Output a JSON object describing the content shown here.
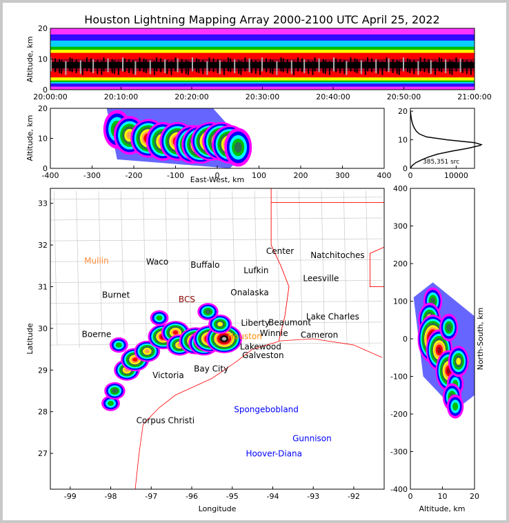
{
  "chart_data": [
    {
      "type": "heatmap",
      "name": "altitude-time",
      "title": "Houston Lightning Mapping Array 2000-2100 UTC April 25, 2022",
      "xlabel": "",
      "ylabel": "Altitude, km",
      "xticks": [
        "20:00:00",
        "20:10:00",
        "20:20:00",
        "20:30:00",
        "20:40:00",
        "20:50:00",
        "21:00:00"
      ],
      "yticks": [
        "0",
        "10",
        "20"
      ],
      "ylim": [
        0,
        20
      ],
      "density_bands_km": [
        {
          "from": 0,
          "to": 20,
          "level": 0
        },
        {
          "from": 1,
          "to": 18,
          "level": 1
        },
        {
          "from": 2,
          "to": 16,
          "level": 2
        },
        {
          "from": 2.5,
          "to": 14,
          "level": 3
        },
        {
          "from": 3,
          "to": 13,
          "level": 5
        },
        {
          "from": 4,
          "to": 12,
          "level": 7
        },
        {
          "from": 6,
          "to": 10,
          "level": 8
        },
        {
          "from": 7,
          "to": 9,
          "level": 9
        }
      ]
    },
    {
      "type": "heatmap",
      "name": "east-west-altitude",
      "xlabel": "East-West, km",
      "ylabel": "Altitude, km",
      "xlim": [
        -400,
        400
      ],
      "ylim": [
        0,
        20
      ],
      "xticks": [
        "-400",
        "-300",
        "-200",
        "-100",
        "0",
        "100",
        "200",
        "300",
        "400"
      ],
      "yticks": [
        "0",
        "10",
        "20"
      ],
      "cells": [
        [
          -240,
          13,
          4
        ],
        [
          -210,
          11,
          6
        ],
        [
          -165,
          10,
          8
        ],
        [
          -130,
          9,
          7
        ],
        [
          -95,
          9,
          8
        ],
        [
          -60,
          8,
          8
        ],
        [
          -40,
          8,
          9
        ],
        [
          -15,
          9,
          10
        ],
        [
          10,
          9,
          9
        ],
        [
          30,
          8,
          8
        ],
        [
          50,
          7,
          4
        ]
      ]
    },
    {
      "type": "line",
      "name": "altitude-histogram",
      "xlim": [
        0,
        14000
      ],
      "ylim": [
        0,
        21
      ],
      "xticks": [
        "0",
        "10000"
      ],
      "yticks": [
        "0",
        "10",
        "20"
      ],
      "annotation": "385,351 src",
      "altitude_km": [
        0,
        1,
        2,
        3,
        4,
        5,
        6,
        7,
        8,
        8.3,
        9,
        10,
        11,
        12,
        13,
        14,
        15,
        16,
        17,
        18,
        19,
        20
      ],
      "counts": [
        0,
        400,
        1200,
        2500,
        4000,
        6000,
        9000,
        12500,
        15200,
        15500,
        14000,
        8000,
        3500,
        2000,
        1300,
        900,
        600,
        400,
        250,
        150,
        80,
        30
      ]
    },
    {
      "type": "heatmap",
      "name": "plan-view-map",
      "xlabel": "Longitude",
      "ylabel": "Latitude",
      "xlim": [
        -99.49,
        -91.25
      ],
      "ylim": [
        26.14,
        33.36
      ],
      "xticks": [
        "-99",
        "-98",
        "-97",
        "-96",
        "-95",
        "-94",
        "-93",
        "-92"
      ],
      "yticks": [
        "27",
        "28",
        "29",
        "30",
        "31",
        "32",
        "33"
      ],
      "cells": [
        [
          -98.0,
          28.2,
          3
        ],
        [
          -97.9,
          28.5,
          4
        ],
        [
          -97.6,
          29.0,
          6
        ],
        [
          -97.4,
          29.25,
          7
        ],
        [
          -97.1,
          29.45,
          6
        ],
        [
          -96.7,
          29.8,
          8
        ],
        [
          -96.4,
          29.9,
          7
        ],
        [
          -96.3,
          29.6,
          6
        ],
        [
          -95.9,
          29.7,
          9
        ],
        [
          -95.7,
          29.65,
          8
        ],
        [
          -95.55,
          29.75,
          9
        ],
        [
          -95.2,
          29.75,
          10
        ],
        [
          -95.3,
          30.1,
          5
        ],
        [
          -95.6,
          30.4,
          4
        ],
        [
          -96.8,
          30.25,
          3
        ],
        [
          -97.8,
          29.6,
          3
        ]
      ],
      "cities": [
        {
          "name": "Mullin",
          "lon": -98.35,
          "lat": 31.62,
          "color": "#ff8c3c"
        },
        {
          "name": "Waco",
          "lon": -96.85,
          "lat": 31.6,
          "color": "#000000"
        },
        {
          "name": "Buffalo",
          "lon": -95.67,
          "lat": 31.52,
          "color": "#000000"
        },
        {
          "name": "Lufkin",
          "lon": -94.41,
          "lat": 31.39,
          "color": "#000000"
        },
        {
          "name": "Center",
          "lon": -93.82,
          "lat": 31.85,
          "color": "#000000"
        },
        {
          "name": "Natchitoches",
          "lon": -92.4,
          "lat": 31.75,
          "color": "#000000"
        },
        {
          "name": "Leesville",
          "lon": -92.81,
          "lat": 31.2,
          "color": "#000000"
        },
        {
          "name": "Burnet",
          "lon": -97.87,
          "lat": 30.8,
          "color": "#000000"
        },
        {
          "name": "BCS",
          "lon": -96.12,
          "lat": 30.69,
          "color": "#8b0000"
        },
        {
          "name": "Onalaska",
          "lon": -94.57,
          "lat": 30.86,
          "color": "#000000"
        },
        {
          "name": "Liberty",
          "lon": -94.43,
          "lat": 30.13,
          "color": "#000000"
        },
        {
          "name": "Beaumont",
          "lon": -93.58,
          "lat": 30.14,
          "color": "#000000"
        },
        {
          "name": "Lake Charles",
          "lon": -92.52,
          "lat": 30.28,
          "color": "#000000"
        },
        {
          "name": "Winnie",
          "lon": -93.97,
          "lat": 29.88,
          "color": "#000000"
        },
        {
          "name": "Cameron",
          "lon": -92.85,
          "lat": 29.84,
          "color": "#000000"
        },
        {
          "name": "Boerne",
          "lon": -98.35,
          "lat": 29.86,
          "color": "#000000"
        },
        {
          "name": "Houston",
          "lon": -94.69,
          "lat": 29.81,
          "color": "#ff8c00"
        },
        {
          "name": "Lakewood",
          "lon": -94.3,
          "lat": 29.56,
          "color": "#000000"
        },
        {
          "name": "Galveston",
          "lon": -94.24,
          "lat": 29.35,
          "color": "#000000"
        },
        {
          "name": "Bay City",
          "lon": -95.52,
          "lat": 29.03,
          "color": "#000000"
        },
        {
          "name": "Victoria",
          "lon": -96.58,
          "lat": 28.87,
          "color": "#000000"
        },
        {
          "name": "Corpus Christi",
          "lon": -96.65,
          "lat": 27.79,
          "color": "#000000"
        },
        {
          "name": "Spongebobland",
          "lon": -94.16,
          "lat": 28.05,
          "color": "#0000ff"
        },
        {
          "name": "Gunnison",
          "lon": -93.03,
          "lat": 27.36,
          "color": "#0000ff"
        },
        {
          "name": "Hoover-Diana",
          "lon": -93.97,
          "lat": 26.99,
          "color": "#0000ff"
        }
      ]
    },
    {
      "type": "heatmap",
      "name": "north-south-altitude",
      "xlabel": "Altitude, km",
      "ylabel": "North-South, km",
      "xlim": [
        0,
        20
      ],
      "ylim": [
        -400,
        400
      ],
      "xticks": [
        "0",
        "10",
        "20"
      ],
      "yticks": [
        "-400",
        "-300",
        "-200",
        "-100",
        "0",
        "100",
        "200",
        "300",
        "400"
      ],
      "cells": [
        [
          7,
          100,
          4
        ],
        [
          6,
          50,
          6
        ],
        [
          7,
          0,
          10
        ],
        [
          9,
          -30,
          8
        ],
        [
          12,
          -85,
          8
        ],
        [
          14,
          -120,
          3
        ],
        [
          13,
          -155,
          4
        ],
        [
          14,
          -180,
          3
        ],
        [
          15,
          -60,
          5
        ],
        [
          12,
          30,
          4
        ]
      ]
    }
  ],
  "colors": {
    "ramp": [
      "#ff00ff",
      "#0000ff",
      "#00ffff",
      "#00c000",
      "#2f6f4f",
      "#ffff00",
      "#ffa050",
      "#ff0000",
      "#a00020",
      "#000000",
      "#b0b0b0"
    ],
    "border": "#ff0000",
    "county": "#c8c8c8"
  }
}
